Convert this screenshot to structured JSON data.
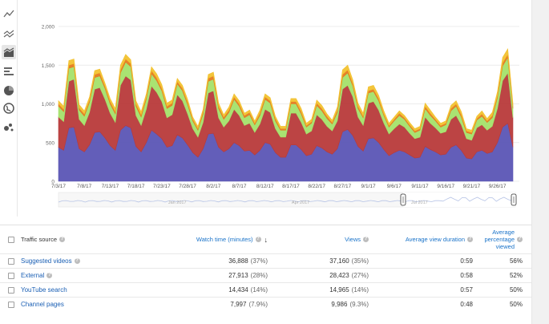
{
  "chart_data": {
    "type": "area",
    "stacked": true,
    "x_start": "7/3/17",
    "x_end": "9/30/17",
    "x_tick_labels": [
      "7/3/17",
      "7/8/17",
      "7/13/17",
      "7/18/17",
      "7/23/17",
      "7/28/17",
      "8/2/17",
      "8/7/17",
      "8/12/17",
      "8/17/17",
      "8/22/17",
      "8/27/17",
      "9/1/17",
      "9/6/17",
      "9/11/17",
      "9/16/17",
      "9/21/17",
      "9/26/17"
    ],
    "y_ticks": [
      "0",
      "500",
      "1,000",
      "1,500",
      "2,000"
    ],
    "ylim": [
      0,
      2000
    ],
    "grid": true,
    "series": [
      {
        "color": "#5b55b5",
        "values": [
          440,
          400,
          690,
          700,
          420,
          380,
          470,
          630,
          640,
          560,
          460,
          400,
          660,
          720,
          690,
          450,
          380,
          500,
          660,
          610,
          550,
          440,
          460,
          600,
          560,
          470,
          370,
          310,
          420,
          610,
          620,
          440,
          380,
          420,
          500,
          460,
          390,
          400,
          340,
          400,
          500,
          480,
          370,
          310,
          310,
          470,
          470,
          410,
          330,
          350,
          460,
          430,
          380,
          350,
          420,
          640,
          670,
          590,
          450,
          390,
          550,
          560,
          500,
          410,
          330,
          370,
          400,
          380,
          340,
          300,
          310,
          450,
          410,
          380,
          340,
          350,
          440,
          470,
          400,
          300,
          290,
          380,
          400,
          360,
          380,
          500,
          700,
          750,
          440
        ]
      },
      {
        "color": "#b83a3a",
        "values": [
          390,
          370,
          600,
          620,
          380,
          340,
          420,
          560,
          570,
          500,
          420,
          360,
          580,
          640,
          620,
          400,
          340,
          430,
          570,
          540,
          480,
          380,
          400,
          520,
          480,
          400,
          310,
          260,
          340,
          530,
          550,
          380,
          320,
          360,
          430,
          390,
          330,
          350,
          290,
          340,
          430,
          410,
          310,
          260,
          260,
          410,
          410,
          350,
          280,
          300,
          400,
          370,
          330,
          300,
          360,
          550,
          570,
          500,
          380,
          330,
          460,
          470,
          420,
          340,
          280,
          310,
          340,
          320,
          280,
          250,
          260,
          380,
          340,
          310,
          280,
          290,
          360,
          380,
          330,
          250,
          240,
          310,
          330,
          300,
          330,
          440,
          600,
          650,
          380
        ]
      },
      {
        "color": "#a4e26a",
        "values": [
          140,
          130,
          170,
          160,
          120,
          120,
          130,
          150,
          150,
          140,
          120,
          110,
          160,
          180,
          170,
          120,
          110,
          130,
          160,
          150,
          140,
          120,
          120,
          140,
          130,
          120,
          100,
          90,
          110,
          150,
          150,
          120,
          100,
          110,
          130,
          120,
          100,
          110,
          100,
          110,
          130,
          120,
          100,
          90,
          90,
          120,
          120,
          110,
          90,
          100,
          120,
          110,
          100,
          90,
          110,
          150,
          160,
          140,
          110,
          100,
          130,
          130,
          120,
          100,
          90,
          100,
          110,
          100,
          90,
          80,
          90,
          110,
          100,
          90,
          80,
          90,
          110,
          120,
          100,
          80,
          80,
          100,
          110,
          100,
          110,
          140,
          190,
          200,
          120
        ]
      },
      {
        "color": "#e57a1f",
        "values": [
          30,
          30,
          40,
          40,
          30,
          30,
          30,
          40,
          40,
          30,
          30,
          30,
          40,
          40,
          40,
          30,
          30,
          30,
          40,
          40,
          30,
          30,
          30,
          30,
          30,
          30,
          20,
          20,
          30,
          40,
          40,
          30,
          30,
          30,
          30,
          30,
          30,
          30,
          20,
          30,
          30,
          30,
          30,
          20,
          20,
          30,
          30,
          30,
          20,
          20,
          30,
          30,
          30,
          20,
          30,
          40,
          40,
          30,
          30,
          20,
          30,
          30,
          30,
          20,
          20,
          20,
          30,
          20,
          20,
          20,
          20,
          30,
          30,
          20,
          20,
          20,
          30,
          30,
          30,
          20,
          20,
          20,
          30,
          20,
          30,
          30,
          40,
          40,
          30
        ]
      },
      {
        "color": "#f2c230",
        "values": [
          40,
          40,
          60,
          60,
          40,
          40,
          40,
          50,
          50,
          40,
          40,
          40,
          60,
          60,
          50,
          40,
          40,
          40,
          50,
          50,
          50,
          40,
          40,
          40,
          40,
          40,
          30,
          30,
          30,
          50,
          50,
          40,
          30,
          40,
          40,
          40,
          30,
          30,
          30,
          40,
          40,
          40,
          30,
          30,
          30,
          40,
          40,
          40,
          30,
          30,
          40,
          40,
          30,
          30,
          40,
          60,
          60,
          50,
          40,
          40,
          50,
          50,
          40,
          40,
          30,
          30,
          30,
          30,
          30,
          30,
          30,
          40,
          40,
          30,
          30,
          30,
          40,
          40,
          40,
          30,
          30,
          30,
          40,
          30,
          40,
          50,
          70,
          70,
          40
        ]
      }
    ],
    "navigator_labels": [
      "Jan 2017",
      "Apr 2017",
      "Jul 2017"
    ]
  },
  "toolbar": {
    "icons": [
      "line-chart-icon",
      "multi-line-chart-icon",
      "stacked-area-chart-icon",
      "bar-chart-icon",
      "pie-chart-icon",
      "globe-map-icon",
      "bubble-chart-icon"
    ]
  },
  "table": {
    "headers": {
      "source": "Traffic source",
      "watch_time": "Watch time (minutes)",
      "views": "Views",
      "avg_duration": "Average view duration",
      "avg_pct": "Average percentage viewed"
    },
    "rows": [
      {
        "source": "Suggested videos",
        "watch": "36,888",
        "watch_pct": "(37%)",
        "views": "37,160",
        "views_pct": "(35%)",
        "duration": "0:59",
        "pct": "56%",
        "help": true
      },
      {
        "source": "External",
        "watch": "27,913",
        "watch_pct": "(28%)",
        "views": "28,423",
        "views_pct": "(27%)",
        "duration": "0:58",
        "pct": "52%",
        "help": true
      },
      {
        "source": "YouTube search",
        "watch": "14,434",
        "watch_pct": "(14%)",
        "views": "14,965",
        "views_pct": "(14%)",
        "duration": "0:57",
        "pct": "50%",
        "help": false
      },
      {
        "source": "Channel pages",
        "watch": "7,997",
        "watch_pct": "(7.9%)",
        "views": "9,986",
        "views_pct": "(9.3%)",
        "duration": "0:48",
        "pct": "50%",
        "help": false
      }
    ]
  }
}
